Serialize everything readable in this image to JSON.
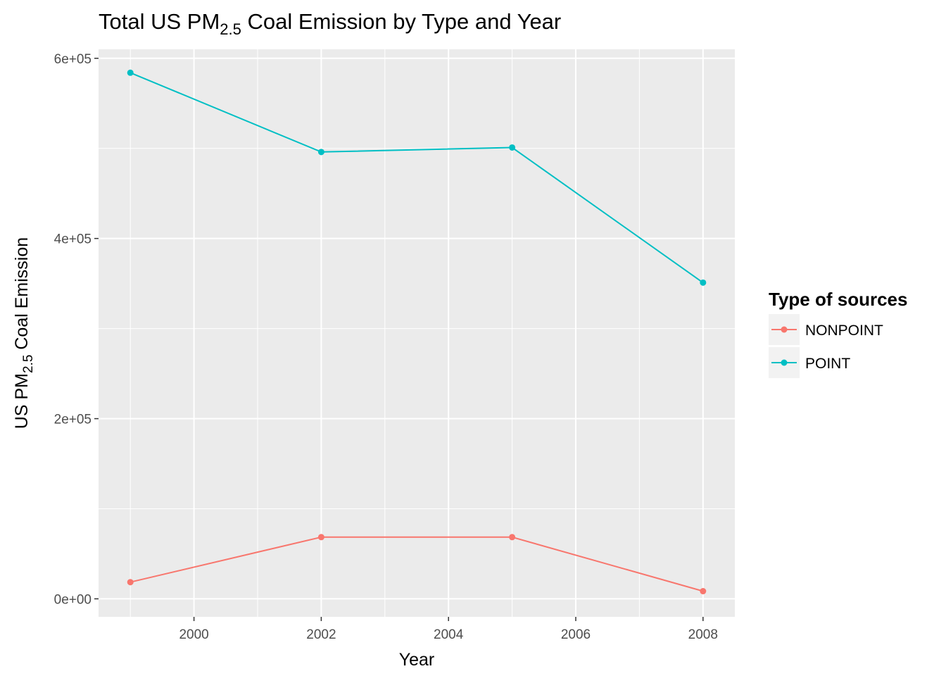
{
  "chart_data": {
    "type": "line",
    "title": {
      "main": "Total US PM",
      "sub": "2.5",
      "rest": " Coal Emission by Type and Year"
    },
    "xlabel": "Year",
    "ylabel": {
      "main": "US  PM",
      "sub": "2.5",
      "rest": " Coal Emission"
    },
    "xlim": [
      1998.5,
      2008.5
    ],
    "ylim": [
      -20000,
      610000
    ],
    "x_ticks": [
      2000,
      2002,
      2004,
      2006,
      2008
    ],
    "x_tick_labels": [
      "2000",
      "2002",
      "2004",
      "2006",
      "2008"
    ],
    "y_ticks": [
      0,
      200000,
      400000,
      600000
    ],
    "y_tick_labels": [
      "0e+00",
      "2e+05",
      "4e+05",
      "6e+05"
    ],
    "grid": true,
    "legend": {
      "title": "Type of sources",
      "placement": "right"
    },
    "x": [
      1999,
      2002,
      2005,
      2008
    ],
    "series": [
      {
        "name": "NONPOINT",
        "color": "#F8766D",
        "values": [
          18500,
          68500,
          68500,
          8500
        ]
      },
      {
        "name": "POINT",
        "color": "#00BFC4",
        "values": [
          584000,
          496000,
          501000,
          351000
        ]
      }
    ]
  }
}
